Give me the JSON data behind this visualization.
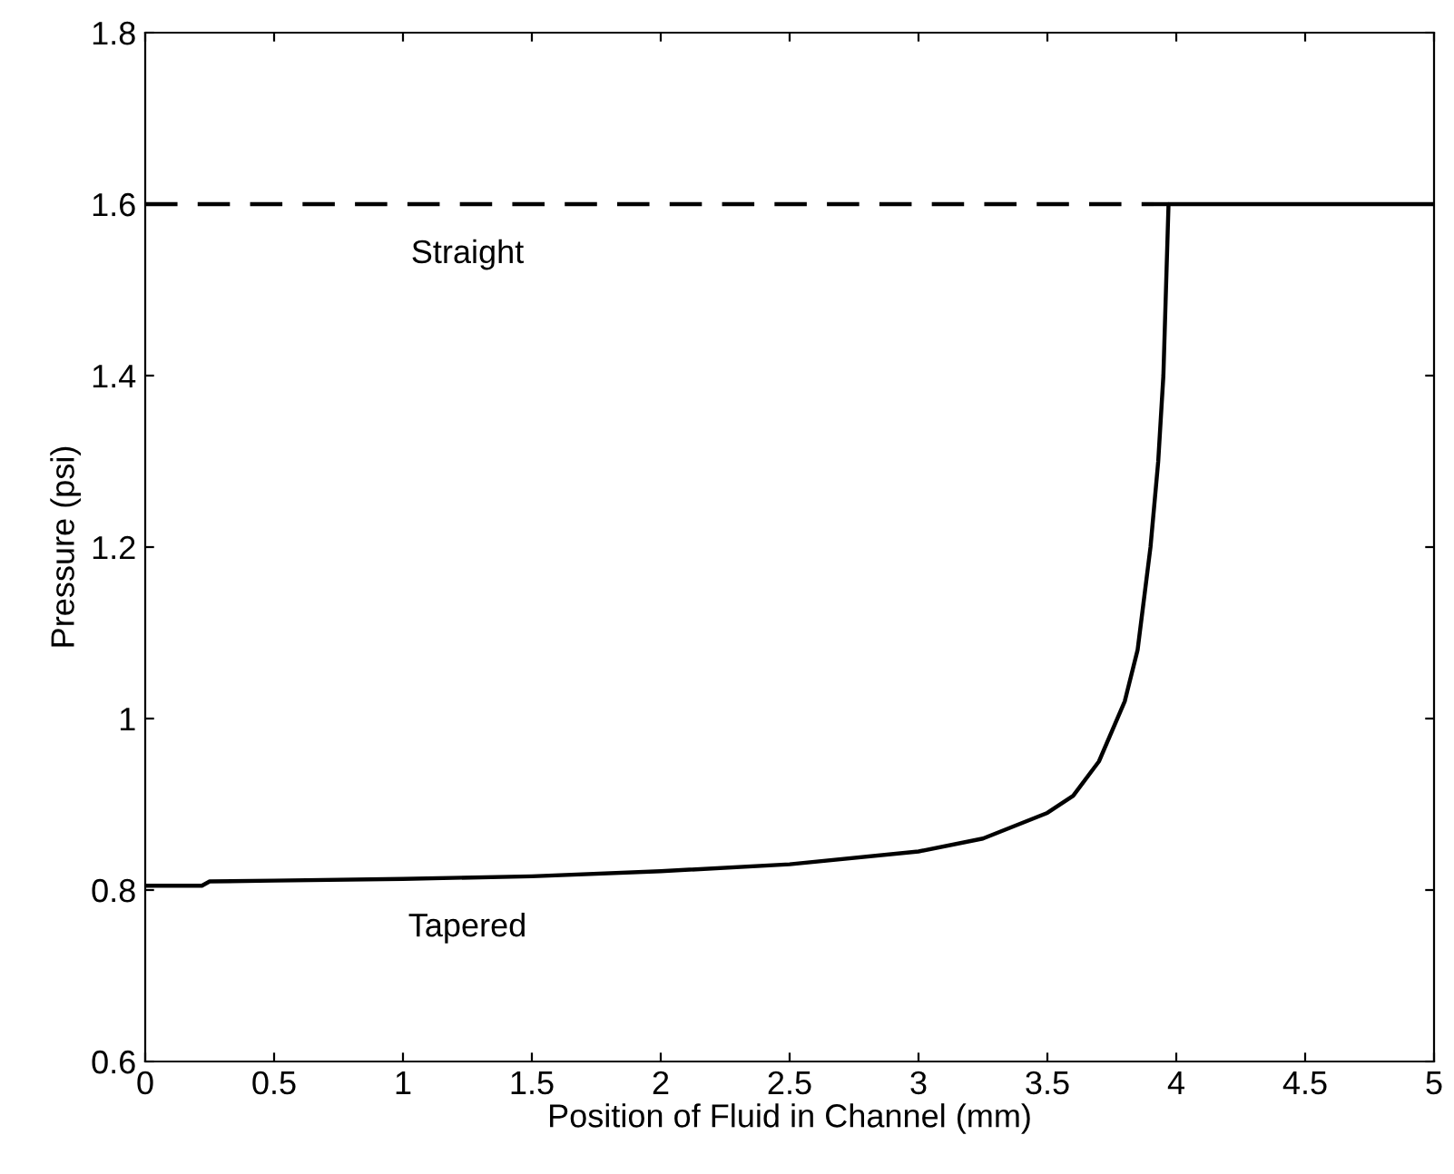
{
  "chart_data": {
    "type": "line",
    "xlabel": "Position of Fluid in Channel (mm)",
    "ylabel": "Pressure (psi)",
    "xlim": [
      0,
      5
    ],
    "xticks": [
      0,
      0.5,
      1,
      1.5,
      2,
      2.5,
      3,
      3.5,
      4,
      4.5,
      5
    ],
    "ylim": [
      0.6,
      1.8
    ],
    "yticks": [
      0.6,
      0.8,
      1,
      1.2,
      1.4,
      1.6,
      1.8
    ],
    "grid": false,
    "legend": false,
    "series": [
      {
        "name": "Straight",
        "color": "#000000",
        "line_style": "dashed",
        "x": [
          0,
          3.97
        ],
        "values": [
          1.6,
          1.6
        ]
      },
      {
        "name": "Tapered",
        "color": "#000000",
        "line_style": "solid",
        "x": [
          0,
          0.22,
          0.25,
          0.5,
          1,
          1.5,
          2,
          2.5,
          3,
          3.25,
          3.5,
          3.6,
          3.7,
          3.8,
          3.85,
          3.9,
          3.93,
          3.95,
          3.96,
          3.97,
          5
        ],
        "values": [
          0.805,
          0.805,
          0.81,
          0.811,
          0.813,
          0.816,
          0.822,
          0.83,
          0.845,
          0.86,
          0.89,
          0.91,
          0.95,
          1.02,
          1.08,
          1.2,
          1.3,
          1.4,
          1.5,
          1.6,
          1.6
        ]
      }
    ]
  }
}
